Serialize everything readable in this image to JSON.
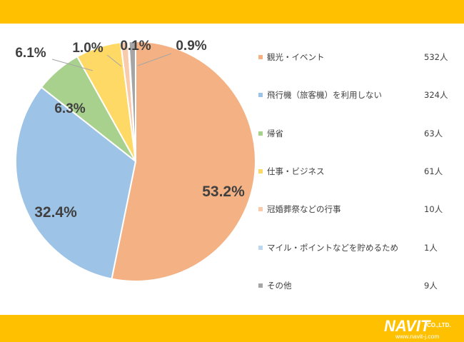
{
  "colors": {
    "band": "#FFC000",
    "outline": "#ffffff",
    "leader": "#a6a6a6",
    "label_text": "#404040"
  },
  "logo": {
    "name": "NAVIT",
    "suffix": "CO.,LTD.",
    "url": "www.navit-j.com"
  },
  "chart_data": {
    "type": "pie",
    "start_angle_deg": 0,
    "direction": "clockwise",
    "legend_position": "right",
    "slices": [
      {
        "label": "観光・イベント",
        "count": 532,
        "count_label": "532人",
        "percent": 53.2,
        "percent_label": "53.2%",
        "color": "#F4B183"
      },
      {
        "label": "飛行機（旅客機）を利用しない",
        "count": 324,
        "count_label": "324人",
        "percent": 32.4,
        "percent_label": "32.4%",
        "color": "#9DC3E6"
      },
      {
        "label": "帰省",
        "count": 63,
        "count_label": "63人",
        "percent": 6.3,
        "percent_label": "6.3%",
        "color": "#A9D18E"
      },
      {
        "label": "仕事・ビジネス",
        "count": 61,
        "count_label": "61人",
        "percent": 6.1,
        "percent_label": "6.1%",
        "color": "#FFD966"
      },
      {
        "label": "冠婚葬祭などの行事",
        "count": 10,
        "count_label": "10人",
        "percent": 1.0,
        "percent_label": "1.0%",
        "color": "#F8CBAD"
      },
      {
        "label": "マイル・ポイントなどを貯めるため",
        "count": 1,
        "count_label": "1人",
        "percent": 0.1,
        "percent_label": "0.1%",
        "color": "#BDD7EE"
      },
      {
        "label": "その他",
        "count": 9,
        "count_label": "9人",
        "percent": 0.9,
        "percent_label": "0.9%",
        "color": "#A5A5A5"
      }
    ]
  }
}
